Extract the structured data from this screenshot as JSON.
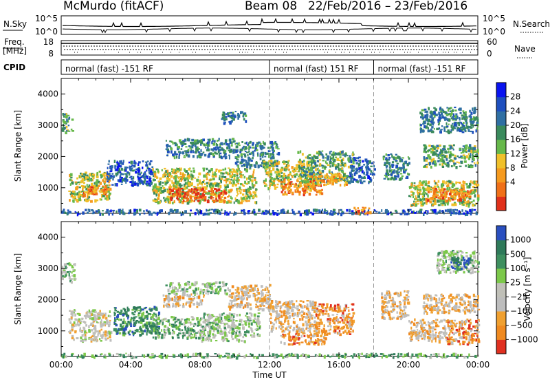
{
  "header": {
    "station": "McMurdo (fitACF)",
    "beam": "Beam 08",
    "date_range": "22/Feb/2016 – 23/Feb/2016"
  },
  "panels": {
    "nsky_label": "N.Sky",
    "nsearch_label": "N.Search",
    "nsky_ticks": [
      "10^5",
      "10^0"
    ],
    "nsearch_ticks": [
      "10^5",
      "10^0"
    ],
    "freq_label_1": "Freq.",
    "freq_label_2": "[MHz]",
    "freq_ticks": [
      "18",
      "8"
    ],
    "nave_label": "Nave",
    "nave_ticks": [
      "60",
      "0"
    ],
    "cpid_label": "CPID",
    "cpid_segments": [
      {
        "label": "normal (fast) -151 RF",
        "start": 0.0,
        "end": 12.0
      },
      {
        "label": "normal (fast) 151 RF",
        "start": 12.0,
        "end": 18.0
      },
      {
        "label": "normal (fast) -151 RF",
        "start": 18.0,
        "end": 24.0
      }
    ]
  },
  "chart_data": [
    {
      "type": "heatmap",
      "name": "power",
      "ylabel": "Slant Range [km]",
      "xlim": [
        0,
        24
      ],
      "ylim": [
        180,
        4500
      ],
      "yticks": [
        1000,
        2000,
        3000,
        4000
      ],
      "x_dividers": [
        12,
        18
      ],
      "colorbar": {
        "label": "Power [dB]",
        "ticks": [
          "28",
          "24",
          "20",
          "16",
          "12",
          "8",
          "4"
        ],
        "colors": [
          "#0a14f0",
          "#1e4fbe",
          "#2f6fa3",
          "#3a8a5c",
          "#66b84a",
          "#f0c02a",
          "#f59a1e",
          "#f07018",
          "#e0301a"
        ]
      },
      "regions": [
        {
          "x": [
            0.0,
            24.0
          ],
          "y": [
            180,
            330
          ],
          "level": 2
        },
        {
          "x": [
            0.4,
            2.8
          ],
          "y": [
            600,
            1550
          ],
          "level": 5
        },
        {
          "x": [
            1.2,
            2.6
          ],
          "y": [
            750,
            1100
          ],
          "level": 7
        },
        {
          "x": [
            0.0,
            0.6
          ],
          "y": [
            2800,
            3400
          ],
          "level": 4
        },
        {
          "x": [
            2.6,
            5.2
          ],
          "y": [
            1100,
            1900
          ],
          "level": 2
        },
        {
          "x": [
            5.2,
            11.2
          ],
          "y": [
            550,
            1650
          ],
          "level": 5
        },
        {
          "x": [
            6.2,
            9.4
          ],
          "y": [
            600,
            1000
          ],
          "level": 8
        },
        {
          "x": [
            6.0,
            10.0
          ],
          "y": [
            2000,
            2600
          ],
          "level": 3
        },
        {
          "x": [
            9.2,
            10.6
          ],
          "y": [
            3100,
            3500
          ],
          "level": 3
        },
        {
          "x": [
            10.0,
            12.5
          ],
          "y": [
            1700,
            2500
          ],
          "level": 3
        },
        {
          "x": [
            11.6,
            14.6
          ],
          "y": [
            1000,
            1900
          ],
          "level": 5
        },
        {
          "x": [
            12.6,
            15.0
          ],
          "y": [
            800,
            1300
          ],
          "level": 7
        },
        {
          "x": [
            13.6,
            16.8
          ],
          "y": [
            1200,
            2200
          ],
          "level": 4
        },
        {
          "x": [
            14.4,
            16.4
          ],
          "y": [
            1100,
            1500
          ],
          "level": 6
        },
        {
          "x": [
            16.6,
            18.0
          ],
          "y": [
            1200,
            2000
          ],
          "level": 2
        },
        {
          "x": [
            16.8,
            17.8
          ],
          "y": [
            180,
            400
          ],
          "level": 7
        },
        {
          "x": [
            18.5,
            20.0
          ],
          "y": [
            1300,
            2100
          ],
          "level": 3
        },
        {
          "x": [
            20.0,
            24.0
          ],
          "y": [
            450,
            1250
          ],
          "level": 5
        },
        {
          "x": [
            21.0,
            23.6
          ],
          "y": [
            600,
            1000
          ],
          "level": 7
        },
        {
          "x": [
            20.8,
            24.0
          ],
          "y": [
            1700,
            2400
          ],
          "level": 4
        },
        {
          "x": [
            20.6,
            24.0
          ],
          "y": [
            2800,
            3600
          ],
          "level": 3
        }
      ]
    },
    {
      "type": "heatmap",
      "name": "velocity",
      "xlabel": "Time UT",
      "ylabel": "Slant Range [km]",
      "xlim": [
        0,
        24
      ],
      "ylim": [
        180,
        4500
      ],
      "xticks": [
        "00:00",
        "04:00",
        "08:00",
        "12:00",
        "16:00",
        "20:00",
        "00:00"
      ],
      "yticks": [
        1000,
        2000,
        3000,
        4000
      ],
      "x_dividers": [
        12,
        18
      ],
      "colorbar": {
        "label": "Velocity [m s⁻¹]",
        "ticks": [
          "1000",
          "500",
          "100",
          "25",
          "−25",
          "−100",
          "−500",
          "−1000"
        ],
        "colors": [
          "#2a4fbf",
          "#2f7a5a",
          "#3e8f5f",
          "#7cc84a",
          "#c0c0b8",
          "#bdbdbd",
          "#f0a030",
          "#f08a20",
          "#e03020"
        ]
      },
      "regions": [
        {
          "x": [
            0.0,
            24.0
          ],
          "y": [
            180,
            300
          ],
          "level": 3
        },
        {
          "x": [
            0.4,
            2.8
          ],
          "y": [
            700,
            1700
          ],
          "level": 5
        },
        {
          "x": [
            3.0,
            5.6
          ],
          "y": [
            900,
            1800
          ],
          "level": 2
        },
        {
          "x": [
            5.2,
            8.0
          ],
          "y": [
            800,
            1500
          ],
          "level": 3
        },
        {
          "x": [
            8.0,
            11.4
          ],
          "y": [
            700,
            1600
          ],
          "level": 4
        },
        {
          "x": [
            6.0,
            9.6
          ],
          "y": [
            2200,
            2600
          ],
          "level": 4
        },
        {
          "x": [
            5.8,
            8.2
          ],
          "y": [
            1800,
            2200
          ],
          "level": 6
        },
        {
          "x": [
            0.0,
            0.8
          ],
          "y": [
            2600,
            3200
          ],
          "level": 4
        },
        {
          "x": [
            9.6,
            12.0
          ],
          "y": [
            1700,
            2500
          ],
          "level": 6
        },
        {
          "x": [
            12.0,
            14.6
          ],
          "y": [
            1000,
            2000
          ],
          "level": 6
        },
        {
          "x": [
            14.6,
            16.8
          ],
          "y": [
            900,
            1900
          ],
          "level": 7
        },
        {
          "x": [
            12.6,
            15.2
          ],
          "y": [
            600,
            1000
          ],
          "level": 7
        },
        {
          "x": [
            18.4,
            20.0
          ],
          "y": [
            1400,
            2300
          ],
          "level": 6
        },
        {
          "x": [
            20.0,
            22.4
          ],
          "y": [
            700,
            1400
          ],
          "level": 6
        },
        {
          "x": [
            22.2,
            24.0
          ],
          "y": [
            600,
            1400
          ],
          "level": 7
        },
        {
          "x": [
            20.8,
            24.0
          ],
          "y": [
            1600,
            2200
          ],
          "level": 6
        },
        {
          "x": [
            21.6,
            24.0
          ],
          "y": [
            2900,
            3600
          ],
          "level": 4
        },
        {
          "x": [
            22.4,
            23.6
          ],
          "y": [
            3000,
            3400
          ],
          "level": 1
        }
      ]
    }
  ]
}
